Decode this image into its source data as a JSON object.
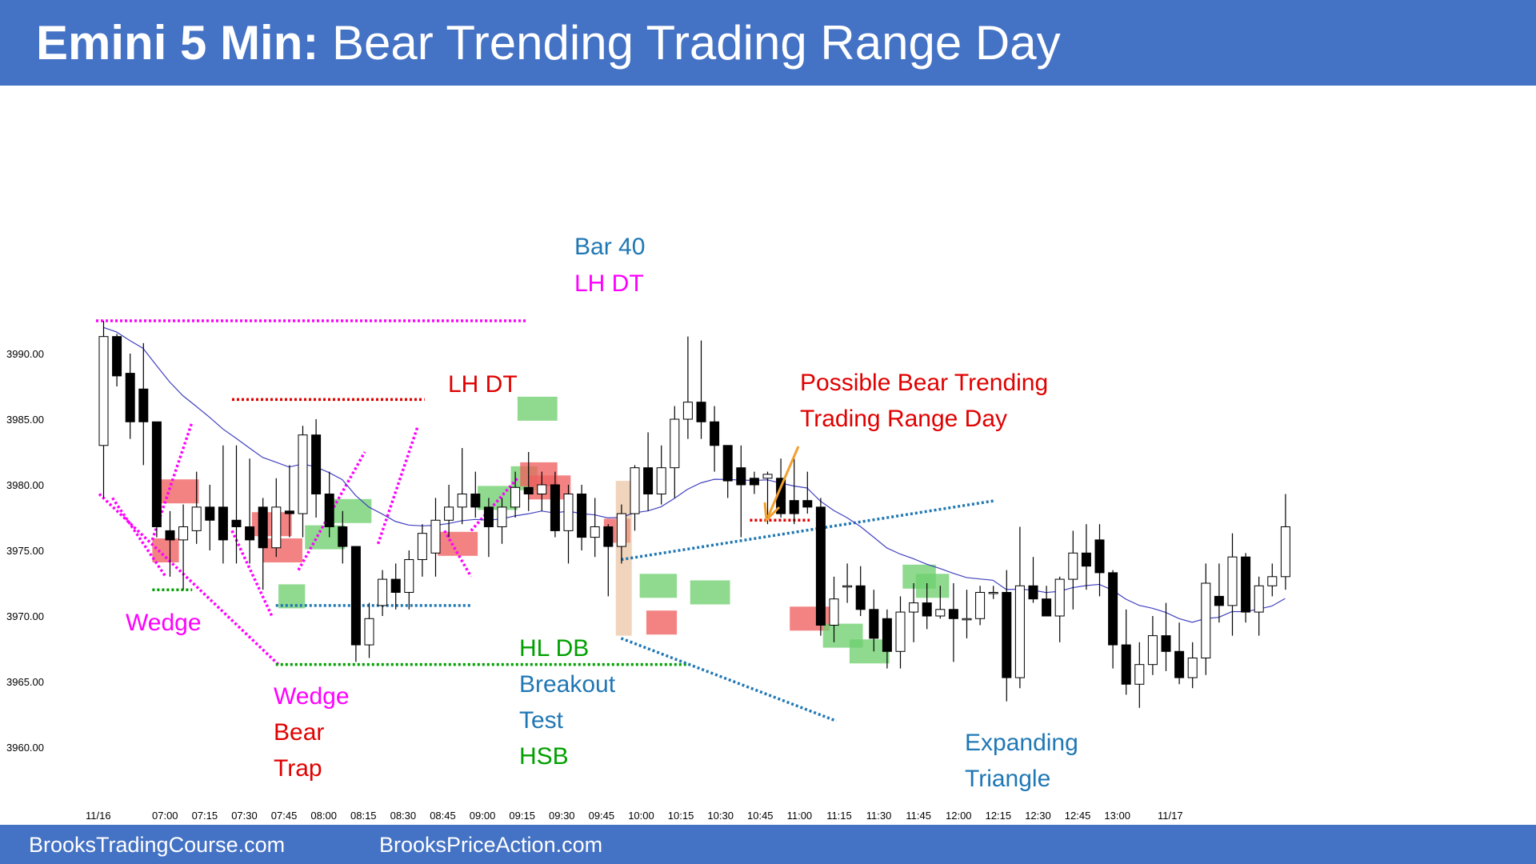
{
  "title": {
    "bold": "Emini 5 Min:",
    "rest": "Bear Trending Trading Range Day"
  },
  "footer": {
    "left": "BrooksTradingCourse.com",
    "right": "BrooksPriceAction.com"
  },
  "colors": {
    "header": "#4472c4",
    "magenta": "#ff00ff",
    "red": "#e00000",
    "green": "#00a000",
    "blue": "#1f77b4",
    "orange": "#f0a030",
    "ema": "#4040c0",
    "bull_zone": "#70d070",
    "bear_zone": "#f06060"
  },
  "chart_data": {
    "type": "candlestick",
    "y_ticks": [
      "3990.00",
      "3985.00",
      "3980.00",
      "3975.00",
      "3970.00",
      "3965.00",
      "3960.00"
    ],
    "x_ticks": [
      "11/16",
      "07:00",
      "07:15",
      "07:30",
      "07:45",
      "08:00",
      "08:15",
      "08:30",
      "08:45",
      "09:00",
      "09:15",
      "09:30",
      "09:45",
      "10:00",
      "10:15",
      "10:30",
      "10:45",
      "11:00",
      "11:15",
      "11:30",
      "11:45",
      "12:00",
      "12:15",
      "12:30",
      "12:45",
      "13:00",
      "11/17"
    ],
    "annotations": {
      "bar40": "Bar 40",
      "lhdt_top": "LH DT",
      "lhdt_mid": "LH DT",
      "possible1": "Possible Bear Trending",
      "possible2": "Trading Range Day",
      "wedge_left": "Wedge",
      "wedge_bt1": "Wedge",
      "wedge_bt2": "Bear",
      "wedge_bt3": "Trap",
      "hldb": "HL DB",
      "breakout": "Breakout",
      "test": "Test",
      "hsb": "HSB",
      "expanding": "Expanding",
      "triangle": "Triangle"
    },
    "candles": [
      {
        "o": 3983,
        "h": 3992.5,
        "l": 3979,
        "c": 3991.3
      },
      {
        "o": 3991.3,
        "h": 3991.5,
        "l": 3987.5,
        "c": 3988.3
      },
      {
        "o": 3988.5,
        "h": 3990,
        "l": 3983.5,
        "c": 3984.8
      },
      {
        "o": 3987.3,
        "h": 3990.8,
        "l": 3981.5,
        "c": 3984.8
      },
      {
        "o": 3984.8,
        "h": 3984.8,
        "l": 3976,
        "c": 3976.8
      },
      {
        "o": 3976.5,
        "h": 3978,
        "l": 3973,
        "c": 3975.8
      },
      {
        "o": 3975.8,
        "h": 3978.5,
        "l": 3972,
        "c": 3976.8
      },
      {
        "o": 3976.5,
        "h": 3981,
        "l": 3975.5,
        "c": 3978.3
      },
      {
        "o": 3978.3,
        "h": 3980,
        "l": 3975,
        "c": 3977.3
      },
      {
        "o": 3978.3,
        "h": 3983,
        "l": 3974,
        "c": 3975.8
      },
      {
        "o": 3977.3,
        "h": 3983,
        "l": 3974,
        "c": 3976.8
      },
      {
        "o": 3976.8,
        "h": 3982,
        "l": 3974,
        "c": 3975.8
      },
      {
        "o": 3978.3,
        "h": 3979,
        "l": 3972,
        "c": 3975.2
      },
      {
        "o": 3975.2,
        "h": 3980.5,
        "l": 3974.5,
        "c": 3978.3
      },
      {
        "o": 3978.0,
        "h": 3981.5,
        "l": 3976,
        "c": 3977.8
      },
      {
        "o": 3977.8,
        "h": 3984.5,
        "l": 3976,
        "c": 3983.8
      },
      {
        "o": 3983.8,
        "h": 3985,
        "l": 3977.5,
        "c": 3979.3
      },
      {
        "o": 3979.3,
        "h": 3981,
        "l": 3976,
        "c": 3976.8
      },
      {
        "o": 3976.8,
        "h": 3978,
        "l": 3974,
        "c": 3975.3
      },
      {
        "o": 3975.3,
        "h": 3975.3,
        "l": 3966.5,
        "c": 3967.8
      },
      {
        "o": 3967.8,
        "h": 3971,
        "l": 3966.8,
        "c": 3969.8
      },
      {
        "o": 3970.8,
        "h": 3973.5,
        "l": 3970,
        "c": 3972.8
      },
      {
        "o": 3972.8,
        "h": 3974,
        "l": 3970.5,
        "c": 3971.8
      },
      {
        "o": 3971.8,
        "h": 3975,
        "l": 3970.5,
        "c": 3974.3
      },
      {
        "o": 3974.3,
        "h": 3977,
        "l": 3973,
        "c": 3976.3
      },
      {
        "o": 3974.8,
        "h": 3979,
        "l": 3973,
        "c": 3977.3
      },
      {
        "o": 3977.3,
        "h": 3980,
        "l": 3976,
        "c": 3978.3
      },
      {
        "o": 3978.3,
        "h": 3982.8,
        "l": 3977,
        "c": 3979.3
      },
      {
        "o": 3979.3,
        "h": 3981,
        "l": 3977.5,
        "c": 3978.3
      },
      {
        "o": 3978.3,
        "h": 3979,
        "l": 3974.5,
        "c": 3976.8
      },
      {
        "o": 3976.8,
        "h": 3979,
        "l": 3975.5,
        "c": 3978.3
      },
      {
        "o": 3978.3,
        "h": 3981,
        "l": 3977.5,
        "c": 3979.8
      },
      {
        "o": 3979.8,
        "h": 3982.5,
        "l": 3978,
        "c": 3979.3
      },
      {
        "o": 3979.3,
        "h": 3981,
        "l": 3978,
        "c": 3980.0
      },
      {
        "o": 3980.0,
        "h": 3981,
        "l": 3976,
        "c": 3976.5
      },
      {
        "o": 3976.5,
        "h": 3980,
        "l": 3974,
        "c": 3979.3
      },
      {
        "o": 3979.3,
        "h": 3980,
        "l": 3975,
        "c": 3976.0
      },
      {
        "o": 3976.0,
        "h": 3979,
        "l": 3974.5,
        "c": 3976.8
      },
      {
        "o": 3976.8,
        "h": 3977,
        "l": 3971.5,
        "c": 3975.3
      },
      {
        "o": 3975.3,
        "h": 3978.5,
        "l": 3974,
        "c": 3977.8
      },
      {
        "o": 3977.8,
        "h": 3981.5,
        "l": 3976.5,
        "c": 3981.3
      },
      {
        "o": 3981.3,
        "h": 3984,
        "l": 3978,
        "c": 3979.3
      },
      {
        "o": 3979.3,
        "h": 3983,
        "l": 3978.5,
        "c": 3981.3
      },
      {
        "o": 3981.3,
        "h": 3986,
        "l": 3979,
        "c": 3985.0
      },
      {
        "o": 3985.0,
        "h": 3991.3,
        "l": 3983.5,
        "c": 3986.3
      },
      {
        "o": 3986.3,
        "h": 3991.0,
        "l": 3983.5,
        "c": 3984.8
      },
      {
        "o": 3984.8,
        "h": 3986,
        "l": 3981,
        "c": 3983.0
      },
      {
        "o": 3983.0,
        "h": 3983,
        "l": 3979,
        "c": 3980.3
      },
      {
        "o": 3981.3,
        "h": 3983,
        "l": 3976,
        "c": 3980.0
      },
      {
        "o": 3980.5,
        "h": 3981,
        "l": 3979.3,
        "c": 3980.0
      },
      {
        "o": 3980.5,
        "h": 3981,
        "l": 3977,
        "c": 3980.8
      },
      {
        "o": 3980.5,
        "h": 3982,
        "l": 3977.5,
        "c": 3977.8
      },
      {
        "o": 3978.8,
        "h": 3982,
        "l": 3977,
        "c": 3977.8
      },
      {
        "o": 3978.8,
        "h": 3981,
        "l": 3977.8,
        "c": 3978.3
      },
      {
        "o": 3978.3,
        "h": 3979,
        "l": 3968.5,
        "c": 3969.3
      },
      {
        "o": 3969.3,
        "h": 3973,
        "l": 3968,
        "c": 3971.3
      },
      {
        "o": 3972.3,
        "h": 3974,
        "l": 3971,
        "c": 3972.3
      },
      {
        "o": 3972.3,
        "h": 3973.8,
        "l": 3970,
        "c": 3970.5
      },
      {
        "o": 3970.5,
        "h": 3972,
        "l": 3967.3,
        "c": 3968.3
      },
      {
        "o": 3969.8,
        "h": 3970.5,
        "l": 3966,
        "c": 3967.3
      },
      {
        "o": 3967.3,
        "h": 3971.5,
        "l": 3966,
        "c": 3970.3
      },
      {
        "o": 3970.3,
        "h": 3972.5,
        "l": 3968,
        "c": 3971.0
      },
      {
        "o": 3971.0,
        "h": 3972.5,
        "l": 3969,
        "c": 3970.0
      },
      {
        "o": 3970.0,
        "h": 3972.3,
        "l": 3969.8,
        "c": 3970.5
      },
      {
        "o": 3970.5,
        "h": 3972.5,
        "l": 3966.5,
        "c": 3969.8
      },
      {
        "o": 3969.8,
        "h": 3972.0,
        "l": 3968.3,
        "c": 3969.8
      },
      {
        "o": 3969.8,
        "h": 3972.3,
        "l": 3969.3,
        "c": 3971.8
      },
      {
        "o": 3971.8,
        "h": 3972.3,
        "l": 3971.3,
        "c": 3971.8
      },
      {
        "o": 3971.8,
        "h": 3973.5,
        "l": 3963.5,
        "c": 3965.3
      },
      {
        "o": 3965.3,
        "h": 3976.8,
        "l": 3964.5,
        "c": 3972.3
      },
      {
        "o": 3972.3,
        "h": 3974.5,
        "l": 3971,
        "c": 3971.3
      },
      {
        "o": 3971.3,
        "h": 3972.3,
        "l": 3970,
        "c": 3970.0
      },
      {
        "o": 3970.0,
        "h": 3973,
        "l": 3968,
        "c": 3972.8
      },
      {
        "o": 3972.8,
        "h": 3976.5,
        "l": 3970.5,
        "c": 3974.8
      },
      {
        "o": 3974.8,
        "h": 3977,
        "l": 3972,
        "c": 3973.8
      },
      {
        "o": 3975.8,
        "h": 3977,
        "l": 3971.5,
        "c": 3973.3
      },
      {
        "o": 3973.3,
        "h": 3973.5,
        "l": 3966,
        "c": 3967.8
      },
      {
        "o": 3967.8,
        "h": 3970.5,
        "l": 3964,
        "c": 3964.8
      },
      {
        "o": 3964.8,
        "h": 3968,
        "l": 3963,
        "c": 3966.3
      },
      {
        "o": 3966.3,
        "h": 3970,
        "l": 3965.5,
        "c": 3968.5
      },
      {
        "o": 3968.5,
        "h": 3971,
        "l": 3965.8,
        "c": 3967.3
      },
      {
        "o": 3967.3,
        "h": 3969.5,
        "l": 3964.8,
        "c": 3965.3
      },
      {
        "o": 3965.3,
        "h": 3968,
        "l": 3964.5,
        "c": 3966.8
      },
      {
        "o": 3966.8,
        "h": 3974,
        "l": 3965.5,
        "c": 3972.5
      },
      {
        "o": 3971.5,
        "h": 3974,
        "l": 3969.5,
        "c": 3970.8
      },
      {
        "o": 3970.8,
        "h": 3976.3,
        "l": 3968.5,
        "c": 3974.5
      },
      {
        "o": 3974.5,
        "h": 3974.8,
        "l": 3969.5,
        "c": 3970.3
      },
      {
        "o": 3970.3,
        "h": 3973,
        "l": 3968.5,
        "c": 3972.3
      },
      {
        "o": 3972.3,
        "h": 3974,
        "l": 3971.5,
        "c": 3973.0
      },
      {
        "o": 3973.0,
        "h": 3979.3,
        "l": 3972.0,
        "c": 3976.8
      }
    ]
  }
}
